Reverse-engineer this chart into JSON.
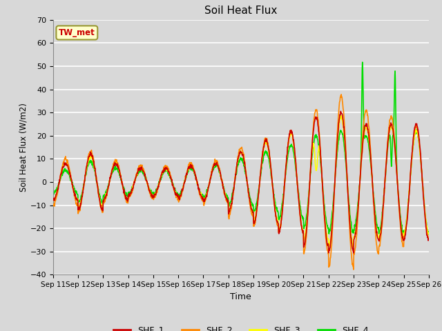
{
  "title": "Soil Heat Flux",
  "xlabel": "Time",
  "ylabel": "Soil Heat Flux (W/m2)",
  "ylim": [
    -40,
    70
  ],
  "xlim": [
    0,
    15
  ],
  "background_color": "#d8d8d8",
  "plot_bg_color": "#d8d8d8",
  "grid_color": "white",
  "series_colors": {
    "SHF_1": "#cc0000",
    "SHF_2": "#ff8800",
    "SHF_3": "#ffff00",
    "SHF_4": "#00dd00"
  },
  "xtick_labels": [
    "Sep 11",
    "Sep 12",
    "Sep 13",
    "Sep 14",
    "Sep 15",
    "Sep 16",
    "Sep 17",
    "Sep 18",
    "Sep 19",
    "Sep 20",
    "Sep 21",
    "Sep 22",
    "Sep 23",
    "Sep 24",
    "Sep 25",
    "Sep 26"
  ],
  "annotation_text": "TW_met",
  "annotation_color": "#cc0000",
  "annotation_bg": "#ffffcc",
  "annotation_border": "#999933"
}
